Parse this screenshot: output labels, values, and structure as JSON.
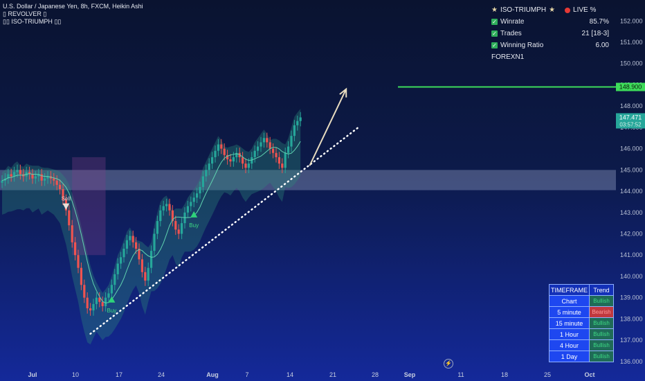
{
  "legend": {
    "symbol": "U.S. Dollar / Japanese Yen, 8h, FXCM, Heikin Ashi",
    "indicator1": "REVOLVER",
    "indicator2": "ISO-TRIUMPH"
  },
  "stats": {
    "title": "ISO-TRIUMPH",
    "live": "LIVE %",
    "rows": [
      {
        "label": "Winrate",
        "value": "85.7%"
      },
      {
        "label": "Trades",
        "value": "21 [18-3]"
      },
      {
        "label": "Winning Ratio",
        "value": "6.00"
      }
    ],
    "footer": "FOREXN1"
  },
  "trend_table": {
    "headers": [
      "TIMEFRAME",
      "Trend"
    ],
    "rows": [
      {
        "tf": "Chart",
        "trend": "Bullish"
      },
      {
        "tf": "5 minute",
        "trend": "Bearish"
      },
      {
        "tf": "15 minute",
        "trend": "Bullish"
      },
      {
        "tf": "1 Hour",
        "trend": "Bullish"
      },
      {
        "tf": "4 Hour",
        "trend": "Bullish"
      },
      {
        "tf": "1 Day",
        "trend": "Bullish"
      }
    ]
  },
  "colors": {
    "bull": "#26a69a",
    "bear": "#ef5350",
    "target": "#3ddc5a",
    "price_label": "#26a69a",
    "zone": "#b9c4e6"
  },
  "chart_data": {
    "type": "candlestick",
    "title": "",
    "x_ticks": [
      "Jul",
      "10",
      "17",
      "24",
      "Aug",
      "7",
      "14",
      "21",
      "28",
      "Sep",
      "11",
      "18",
      "25",
      "Oct"
    ],
    "y_ticks": [
      "136.000",
      "137.000",
      "138.000",
      "139.000",
      "140.000",
      "141.000",
      "142.000",
      "143.000",
      "144.000",
      "145.000",
      "146.000",
      "147.000",
      "148.000",
      "149.000",
      "150.000",
      "151.000",
      "152.000"
    ],
    "ylim": [
      135.8,
      152.4
    ],
    "last_price": "147.471",
    "countdown": "03:57:52",
    "target_price": "148.900",
    "zone": [
      144.05,
      145.0
    ],
    "close": [
      144.5,
      144.6,
      144.8,
      144.7,
      144.9,
      145.0,
      144.8,
      144.7,
      144.9,
      144.8,
      144.6,
      144.7,
      144.8,
      144.5,
      144.6,
      144.7,
      144.6,
      144.5,
      144.3,
      144.1,
      143.6,
      143.1,
      142.4,
      141.6,
      141.0,
      140.4,
      139.6,
      139.0,
      138.5,
      138.4,
      138.7,
      139.0,
      138.8,
      138.6,
      139.0,
      139.2,
      139.6,
      140.1,
      140.6,
      140.9,
      141.3,
      141.7,
      141.9,
      141.6,
      141.3,
      140.8,
      140.2,
      139.8,
      140.4,
      141.2,
      142.0,
      142.6,
      143.1,
      143.3,
      143.4,
      143.1,
      142.6,
      142.2,
      142.0,
      142.5,
      143.0,
      143.3,
      143.5,
      143.7,
      143.9,
      144.2,
      144.7,
      145.0,
      145.3,
      145.6,
      145.9,
      146.2,
      146.0,
      145.7,
      145.5,
      145.4,
      145.6,
      145.8,
      145.6,
      145.3,
      145.1,
      145.3,
      145.6,
      145.9,
      146.1,
      146.3,
      146.5,
      146.3,
      146.0,
      145.8,
      145.6,
      145.3,
      145.1,
      145.8,
      146.1,
      146.6,
      147.1,
      147.3,
      147.47
    ],
    "signals": [
      {
        "type": "sell",
        "label": "Sell",
        "index": 21,
        "price": 143.3
      },
      {
        "type": "buy",
        "label": "Buy",
        "index": 36,
        "price": 138.9
      },
      {
        "type": "buy",
        "label": "Buy",
        "index": 63,
        "price": 142.9
      }
    ],
    "trendline": [
      [
        29,
        137.3
      ],
      [
        117,
        147.0
      ]
    ],
    "arrow": [
      [
        101,
        145.2
      ],
      [
        113,
        148.8
      ]
    ]
  }
}
